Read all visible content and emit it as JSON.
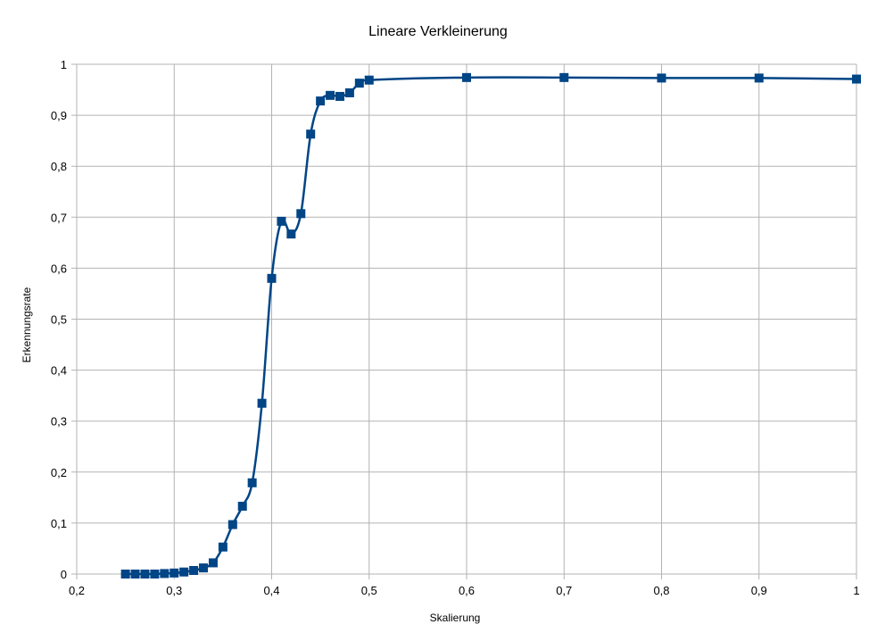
{
  "chart_data": {
    "type": "line",
    "title": "Lineare Verkleinerung",
    "xlabel": "Skalierung",
    "ylabel": "Erkennungsrate",
    "xlim": [
      0.2,
      1
    ],
    "ylim": [
      0,
      1
    ],
    "grid": true,
    "legend": "none",
    "colors": {
      "series": "#004586",
      "grid": "#b3b3b3"
    },
    "xticks": [
      "0,2",
      "0,3",
      "0,4",
      "0,5",
      "0,6",
      "0,7",
      "0,8",
      "0,9",
      "1"
    ],
    "yticks": [
      "0",
      "0,1",
      "0,2",
      "0,3",
      "0,4",
      "0,5",
      "0,6",
      "0,7",
      "0,8",
      "0,9",
      "1"
    ],
    "series": [
      {
        "x": [
          0.25,
          0.26,
          0.27,
          0.28,
          0.29,
          0.3,
          0.31,
          0.32,
          0.33,
          0.34,
          0.35,
          0.36,
          0.37,
          0.38,
          0.39,
          0.4,
          0.41,
          0.42,
          0.43,
          0.44,
          0.45,
          0.46,
          0.47,
          0.48,
          0.49,
          0.5,
          0.6,
          0.7,
          0.8,
          0.9,
          1.0
        ],
        "y": [
          0.0,
          0.0,
          0.0,
          0.0,
          0.001,
          0.002,
          0.004,
          0.007,
          0.012,
          0.022,
          0.053,
          0.097,
          0.133,
          0.179,
          0.335,
          0.58,
          0.692,
          0.667,
          0.707,
          0.863,
          0.928,
          0.939,
          0.937,
          0.944,
          0.963,
          0.969,
          0.974,
          0.974,
          0.973,
          0.973,
          0.971
        ]
      }
    ]
  }
}
